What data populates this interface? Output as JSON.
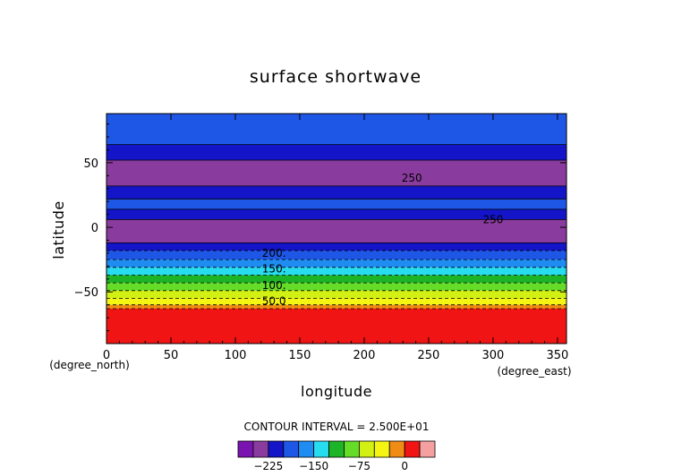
{
  "chart_data": {
    "type": "heatmap",
    "title": "surface shortwave",
    "xlabel": "longitude",
    "ylabel": "latitude",
    "x_unit": "(degree_east)",
    "y_unit": "(degree_north)",
    "xlim": [
      0,
      357
    ],
    "ylim": [
      -90,
      88
    ],
    "x_ticks": [
      0,
      50,
      100,
      150,
      200,
      250,
      300,
      350
    ],
    "x_tick_labels": [
      "0",
      "50",
      "100",
      "150",
      "200",
      "250",
      "300",
      "350"
    ],
    "y_ticks": [
      -50,
      0,
      50
    ],
    "y_tick_labels": [
      "−50",
      "0",
      "50"
    ],
    "grid": false,
    "contour_interval_text": "CONTOUR INTERVAL = 2.500E+01",
    "contour_labels": [
      {
        "text": "200.",
        "lon": 130,
        "lat": -20
      },
      {
        "text": "150.",
        "lon": 130,
        "lat": -32
      },
      {
        "text": "100.",
        "lon": 130,
        "lat": -45
      },
      {
        "text": "50.0",
        "lon": 130,
        "lat": -57
      },
      {
        "text": "250",
        "lon": 237,
        "lat": 38
      },
      {
        "text": "250",
        "lon": 300,
        "lat": 6
      }
    ],
    "bands": [
      {
        "lat_min": 64,
        "lat_max": 88,
        "value": -200
      },
      {
        "lat_min": 52,
        "lat_max": 64,
        "value": -225
      },
      {
        "lat_min": 32,
        "lat_max": 52,
        "value": -250
      },
      {
        "lat_min": 22,
        "lat_max": 32,
        "value": -225
      },
      {
        "lat_min": 14,
        "lat_max": 22,
        "value": -200
      },
      {
        "lat_min": 6,
        "lat_max": 14,
        "value": -225
      },
      {
        "lat_min": -12,
        "lat_max": 6,
        "value": -250
      },
      {
        "lat_min": -18,
        "lat_max": -12,
        "value": -225
      },
      {
        "lat_min": -25,
        "lat_max": -18,
        "value": -200
      },
      {
        "lat_min": -31,
        "lat_max": -25,
        "value": -175
      },
      {
        "lat_min": -37,
        "lat_max": -31,
        "value": -150
      },
      {
        "lat_min": -43,
        "lat_max": -37,
        "value": -125
      },
      {
        "lat_min": -49,
        "lat_max": -43,
        "value": -100
      },
      {
        "lat_min": -55,
        "lat_max": -49,
        "value": -75
      },
      {
        "lat_min": -60,
        "lat_max": -55,
        "value": -50
      },
      {
        "lat_min": -63,
        "lat_max": -60,
        "value": -25
      },
      {
        "lat_min": -90,
        "lat_max": -63,
        "value": 0
      }
    ],
    "colorbar": {
      "levels": [
        -275,
        -250,
        -225,
        -200,
        -175,
        -150,
        -125,
        -100,
        -75,
        -50,
        -25,
        0,
        25
      ],
      "colors": [
        "#7a14b0",
        "#8a3c9e",
        "#1414c8",
        "#1e56e6",
        "#1e8cf0",
        "#28dcf0",
        "#1eb428",
        "#64dc28",
        "#d2f014",
        "#f5f514",
        "#f08c14",
        "#f01414",
        "#f5a0a0"
      ],
      "tick_values": [
        -225,
        -150,
        -75,
        0
      ],
      "tick_labels": [
        "−225",
        "−150",
        "−75",
        "0"
      ]
    }
  }
}
